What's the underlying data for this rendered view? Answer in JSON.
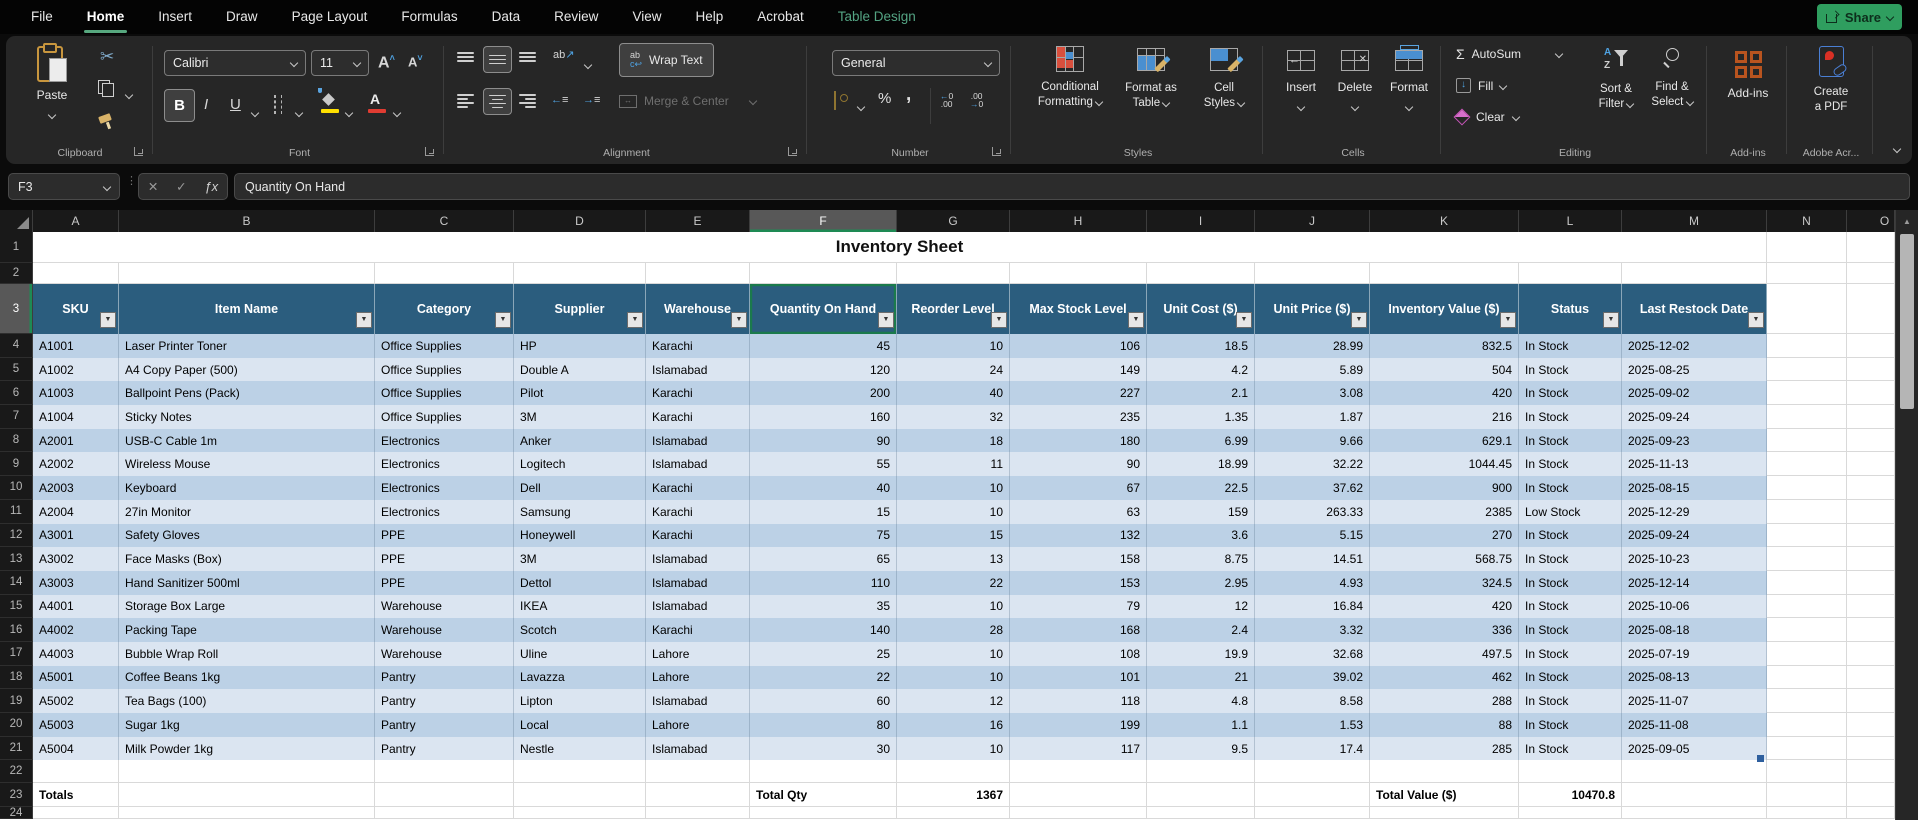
{
  "menu": {
    "items": [
      {
        "label": "File"
      },
      {
        "label": "Home",
        "active": true
      },
      {
        "label": "Insert"
      },
      {
        "label": "Draw"
      },
      {
        "label": "Page Layout"
      },
      {
        "label": "Formulas"
      },
      {
        "label": "Data"
      },
      {
        "label": "Review"
      },
      {
        "label": "View"
      },
      {
        "label": "Help"
      },
      {
        "label": "Acrobat"
      },
      {
        "label": "Table Design",
        "accent": true
      }
    ],
    "share_label": "Share"
  },
  "ribbon": {
    "groups": {
      "clipboard": {
        "label": "Clipboard",
        "paste": "Paste"
      },
      "font": {
        "label": "Font",
        "font_name": "Calibri",
        "font_size": "11",
        "bold": "B",
        "italic": "I",
        "underline": "U"
      },
      "alignment": {
        "label": "Alignment",
        "wrap_text": "Wrap Text",
        "merge_center": "Merge & Center"
      },
      "number": {
        "label": "Number",
        "format": "General",
        "percent": "%"
      },
      "styles": {
        "label": "Styles",
        "cf1": "Conditional",
        "cf2": "Formatting",
        "ft1": "Format as",
        "ft2": "Table",
        "cs1": "Cell",
        "cs2": "Styles"
      },
      "cells": {
        "label": "Cells",
        "insert": "Insert",
        "del": "Delete",
        "format": "Format"
      },
      "editing": {
        "label": "Editing",
        "autosum": "AutoSum",
        "fill": "Fill",
        "clear": "Clear",
        "sort1": "Sort &",
        "sort2": "Filter",
        "find1": "Find &",
        "find2": "Select"
      },
      "addins": {
        "label": "Add-ins",
        "button": "Add-ins"
      },
      "adobe": {
        "label": "Adobe Acr...",
        "line1": "Create",
        "line2": "a PDF"
      }
    }
  },
  "formula_bar": {
    "name_box": "F3",
    "formula": "Quantity On Hand"
  },
  "sheet": {
    "title": "Inventory Sheet",
    "column_letters": [
      "A",
      "B",
      "C",
      "D",
      "E",
      "F",
      "G",
      "H",
      "I",
      "J",
      "K",
      "L",
      "M",
      "N",
      "O"
    ],
    "selected_column": "F",
    "selected_cell": "F3",
    "table": {
      "headers": [
        "SKU",
        "Item Name",
        "Category",
        "Supplier",
        "Warehouse",
        "Quantity On Hand",
        "Reorder Level",
        "Max Stock Level",
        "Unit Cost ($)",
        "Unit Price ($)",
        "Inventory Value ($)",
        "Status",
        "Last Restock Date"
      ],
      "rows": [
        [
          "A1001",
          "Laser Printer Toner",
          "Office Supplies",
          "HP",
          "Karachi",
          "45",
          "10",
          "106",
          "18.5",
          "28.99",
          "832.5",
          "In Stock",
          "2025-12-02"
        ],
        [
          "A1002",
          "A4 Copy Paper (500)",
          "Office Supplies",
          "Double A",
          "Islamabad",
          "120",
          "24",
          "149",
          "4.2",
          "5.89",
          "504",
          "In Stock",
          "2025-08-25"
        ],
        [
          "A1003",
          "Ballpoint Pens (Pack)",
          "Office Supplies",
          "Pilot",
          "Karachi",
          "200",
          "40",
          "227",
          "2.1",
          "3.08",
          "420",
          "In Stock",
          "2025-09-02"
        ],
        [
          "A1004",
          "Sticky Notes",
          "Office Supplies",
          "3M",
          "Karachi",
          "160",
          "32",
          "235",
          "1.35",
          "1.87",
          "216",
          "In Stock",
          "2025-09-24"
        ],
        [
          "A2001",
          "USB-C Cable 1m",
          "Electronics",
          "Anker",
          "Islamabad",
          "90",
          "18",
          "180",
          "6.99",
          "9.66",
          "629.1",
          "In Stock",
          "2025-09-23"
        ],
        [
          "A2002",
          "Wireless Mouse",
          "Electronics",
          "Logitech",
          "Islamabad",
          "55",
          "11",
          "90",
          "18.99",
          "32.22",
          "1044.45",
          "In Stock",
          "2025-11-13"
        ],
        [
          "A2003",
          "Keyboard",
          "Electronics",
          "Dell",
          "Karachi",
          "40",
          "10",
          "67",
          "22.5",
          "37.62",
          "900",
          "In Stock",
          "2025-08-15"
        ],
        [
          "A2004",
          "27in Monitor",
          "Electronics",
          "Samsung",
          "Karachi",
          "15",
          "10",
          "63",
          "159",
          "263.33",
          "2385",
          "Low Stock",
          "2025-12-29"
        ],
        [
          "A3001",
          "Safety Gloves",
          "PPE",
          "Honeywell",
          "Karachi",
          "75",
          "15",
          "132",
          "3.6",
          "5.15",
          "270",
          "In Stock",
          "2025-09-24"
        ],
        [
          "A3002",
          "Face Masks (Box)",
          "PPE",
          "3M",
          "Islamabad",
          "65",
          "13",
          "158",
          "8.75",
          "14.51",
          "568.75",
          "In Stock",
          "2025-10-23"
        ],
        [
          "A3003",
          "Hand Sanitizer 500ml",
          "PPE",
          "Dettol",
          "Islamabad",
          "110",
          "22",
          "153",
          "2.95",
          "4.93",
          "324.5",
          "In Stock",
          "2025-12-14"
        ],
        [
          "A4001",
          "Storage Box Large",
          "Warehouse",
          "IKEA",
          "Islamabad",
          "35",
          "10",
          "79",
          "12",
          "16.84",
          "420",
          "In Stock",
          "2025-10-06"
        ],
        [
          "A4002",
          "Packing Tape",
          "Warehouse",
          "Scotch",
          "Karachi",
          "140",
          "28",
          "168",
          "2.4",
          "3.32",
          "336",
          "In Stock",
          "2025-08-18"
        ],
        [
          "A4003",
          "Bubble Wrap Roll",
          "Warehouse",
          "Uline",
          "Lahore",
          "25",
          "10",
          "108",
          "19.9",
          "32.68",
          "497.5",
          "In Stock",
          "2025-07-19"
        ],
        [
          "A5001",
          "Coffee Beans 1kg",
          "Pantry",
          "Lavazza",
          "Lahore",
          "22",
          "10",
          "101",
          "21",
          "39.02",
          "462",
          "In Stock",
          "2025-08-13"
        ],
        [
          "A5002",
          "Tea Bags (100)",
          "Pantry",
          "Lipton",
          "Islamabad",
          "60",
          "12",
          "118",
          "4.8",
          "8.58",
          "288",
          "In Stock",
          "2025-11-07"
        ],
        [
          "A5003",
          "Sugar 1kg",
          "Pantry",
          "Local",
          "Lahore",
          "80",
          "16",
          "199",
          "1.1",
          "1.53",
          "88",
          "In Stock",
          "2025-11-08"
        ],
        [
          "A5004",
          "Milk Powder 1kg",
          "Pantry",
          "Nestle",
          "Islamabad",
          "30",
          "10",
          "117",
          "9.5",
          "17.4",
          "285",
          "In Stock",
          "2025-09-05"
        ]
      ],
      "totals": {
        "row_label": "Totals",
        "qty_label": "Total Qty",
        "qty": "1367",
        "value_label": "Total Value ($)",
        "value": "10470.8"
      }
    },
    "colors": {
      "header_blue": "#2b5d7e",
      "band_dark": "#bcd1e6",
      "band_light": "#dbe5f1",
      "selection_green": "#1b7a4c",
      "accent_green": "#2f9e5f"
    }
  }
}
